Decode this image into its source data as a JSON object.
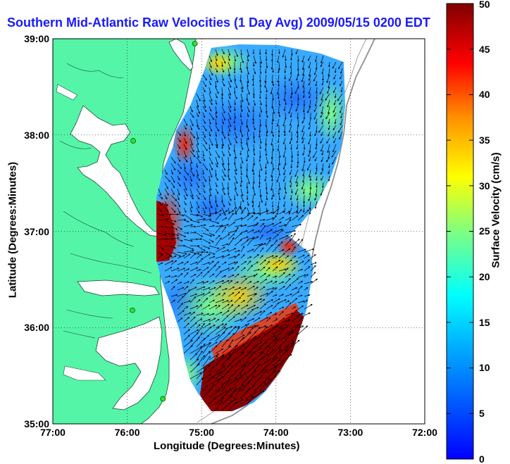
{
  "title": "Southern Mid-Atlantic Raw Velocities (1 Day Avg) 2009/05/15 0200 EDT",
  "map": {
    "xlabel": "Longitude (Degrees:Minutes)",
    "ylabel": "Latitude (Degrees:Minutes)",
    "x_ticks": [
      "77:00",
      "76:00",
      "75:00",
      "74:00",
      "73:00",
      "72:00"
    ],
    "y_ticks": [
      "39:00",
      "38:00",
      "37:00",
      "36:00",
      "35:00"
    ],
    "lon_range": [
      -77,
      -72
    ],
    "lat_range": [
      35,
      39
    ],
    "grid": "dotted",
    "land_color": "#55f5a8",
    "water_color": "#ffffff"
  },
  "colorbar": {
    "label": "Surface Velocity (cm/s)",
    "ticks": [
      "0",
      "5",
      "10",
      "15",
      "20",
      "25",
      "30",
      "35",
      "40",
      "45",
      "50"
    ],
    "range": [
      0,
      50
    ],
    "colormap": "jet"
  },
  "stations": [
    {
      "lon": -75.92,
      "lat": 37.94
    },
    {
      "lon": -75.93,
      "lat": 36.18
    },
    {
      "lon": -75.52,
      "lat": 35.26
    },
    {
      "lon": -75.09,
      "lat": 38.95
    }
  ]
}
